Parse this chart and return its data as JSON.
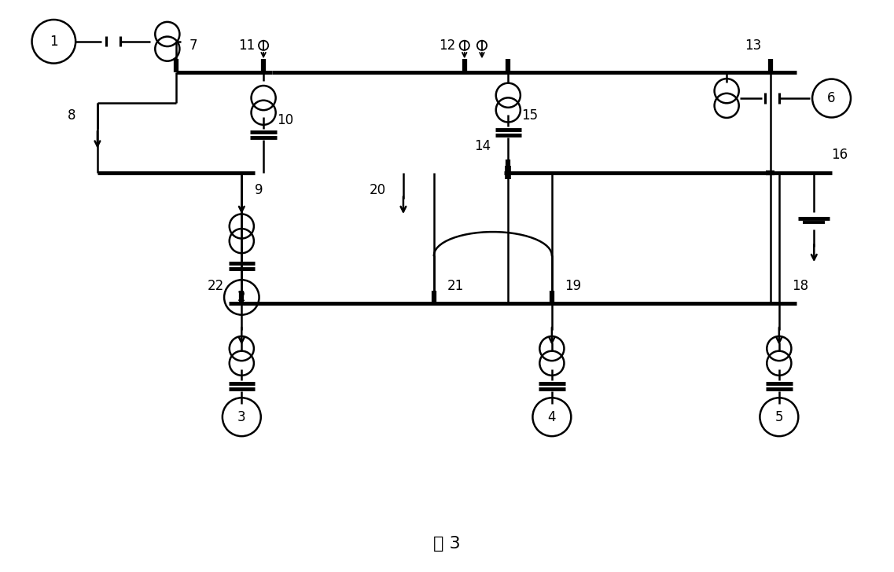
{
  "title": "图 3",
  "bg": "white",
  "lc": "black",
  "lw": 1.8,
  "fs": 12,
  "bus_lw": 3.5
}
